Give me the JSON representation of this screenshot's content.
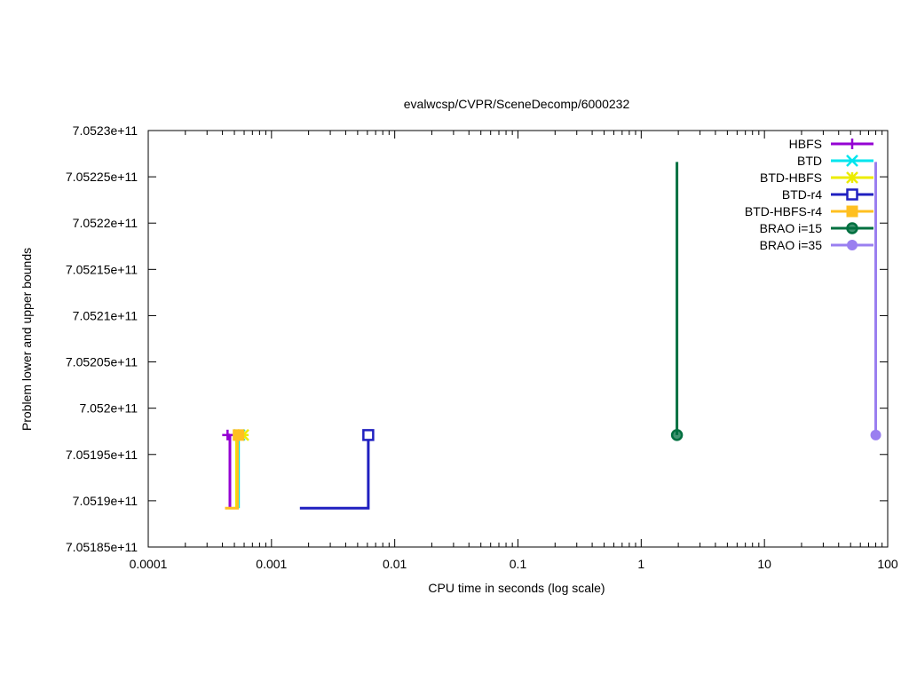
{
  "chart_data": {
    "type": "line",
    "title": "evalwcsp/CVPR/SceneDecomp/6000232",
    "xlabel": "CPU time in seconds (log scale)",
    "ylabel": "Problem lower and upper bounds",
    "xscale": "log",
    "xlim": [
      0.0001,
      100
    ],
    "ylim": [
      705185000000,
      705230000000
    ],
    "grid": false,
    "legend_position": "top-right",
    "x_ticks": [
      {
        "value": 0.0001,
        "label": "0.0001"
      },
      {
        "value": 0.001,
        "label": "0.001"
      },
      {
        "value": 0.01,
        "label": "0.01"
      },
      {
        "value": 0.1,
        "label": "0.1"
      },
      {
        "value": 1,
        "label": "1"
      },
      {
        "value": 10,
        "label": "10"
      },
      {
        "value": 100,
        "label": "100"
      }
    ],
    "y_ticks": [
      {
        "value": 705185000000,
        "label": "7.05185e+11"
      },
      {
        "value": 705190000000,
        "label": "7.0519e+11"
      },
      {
        "value": 705195000000,
        "label": "7.05195e+11"
      },
      {
        "value": 705200000000,
        "label": "7.052e+11"
      },
      {
        "value": 705205000000,
        "label": "7.05205e+11"
      },
      {
        "value": 705210000000,
        "label": "7.0521e+11"
      },
      {
        "value": 705215000000,
        "label": "7.05215e+11"
      },
      {
        "value": 705220000000,
        "label": "7.0522e+11"
      },
      {
        "value": 705225000000,
        "label": "7.05225e+11"
      },
      {
        "value": 705230000000,
        "label": "7.0523e+11"
      }
    ],
    "series": [
      {
        "name": "HBFS",
        "color": "#9400d3",
        "marker": "plus",
        "lower": [
          [
            0.00046,
            705189200000
          ],
          [
            0.00046,
            705197100000
          ]
        ],
        "upper": [
          [
            0.00044,
            705197100000
          ],
          [
            0.00046,
            705197100000
          ]
        ],
        "markers": [
          [
            0.00044,
            705197100000
          ]
        ]
      },
      {
        "name": "BTD",
        "color": "#00e5ee",
        "marker": "cross",
        "lower": [
          [
            0.00054,
            705189200000
          ],
          [
            0.00054,
            705197100000
          ]
        ],
        "upper": [
          [
            0.00054,
            705197100000
          ],
          [
            0.00057,
            705197100000
          ]
        ],
        "markers": [
          [
            0.00055,
            705197100000
          ]
        ]
      },
      {
        "name": "BTD-HBFS",
        "color": "#ecec00",
        "marker": "asterisk",
        "lower": [
          [
            0.00052,
            705189200000
          ],
          [
            0.00052,
            705197100000
          ]
        ],
        "upper": [
          [
            0.00052,
            705197100000
          ],
          [
            0.00059,
            705197100000
          ]
        ],
        "markers": [
          [
            0.00059,
            705197100000
          ]
        ]
      },
      {
        "name": "BTD-r4",
        "color": "#2020c0",
        "marker": "open-square",
        "lower": [
          [
            0.0017,
            705189200000
          ],
          [
            0.0061,
            705189200000
          ],
          [
            0.0061,
            705197100000
          ]
        ],
        "upper": [
          [
            0.0061,
            705197100000
          ]
        ],
        "markers": [
          [
            0.0061,
            705197100000
          ]
        ]
      },
      {
        "name": "BTD-HBFS-r4",
        "color": "#ffc020",
        "marker": "filled-square",
        "lower": [
          [
            0.00042,
            705189200000
          ],
          [
            0.00053,
            705189200000
          ],
          [
            0.00053,
            705197100000
          ]
        ],
        "upper": [
          [
            0.00053,
            705197100000
          ],
          [
            0.00055,
            705197100000
          ]
        ],
        "markers": [
          [
            0.00054,
            705197100000
          ]
        ]
      },
      {
        "name": "BRAO i=15",
        "color": "#007040",
        "marker": "open-circle",
        "lower": [
          [
            1.95,
            705197100000
          ]
        ],
        "upper": [
          [
            1.95,
            705226600000
          ],
          [
            1.95,
            705197100000
          ]
        ],
        "markers": [
          [
            1.95,
            705197100000
          ]
        ]
      },
      {
        "name": "BRAO i=35",
        "color": "#9a7ff0",
        "marker": "filled-circle",
        "lower": [
          [
            80,
            705197100000
          ]
        ],
        "upper": [
          [
            80,
            705226600000
          ],
          [
            80,
            705197100000
          ]
        ],
        "markers": [
          [
            80,
            705197100000
          ]
        ]
      }
    ]
  }
}
